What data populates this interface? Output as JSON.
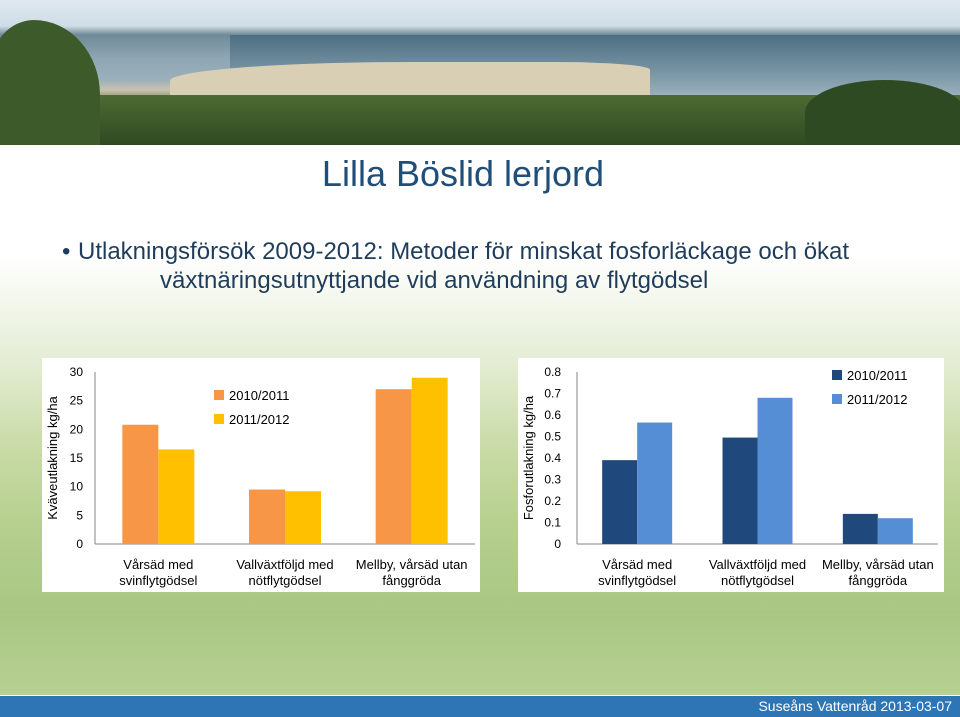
{
  "slide": {
    "title": "Lilla Böslid lerjord",
    "bullet_line1": "Utlakningsförsök 2009-2012: Metoder för minskat fosforläckage och ökat",
    "bullet_line2": "växtnäringsutnyttjande vid användning av flytgödsel",
    "footer": "Suseåns Vattenråd 2013-03-07"
  },
  "colors": {
    "title": "#1f4e79",
    "footer_bar": "#2e75b6"
  },
  "chart_data": [
    {
      "type": "bar",
      "ylabel": "Kväveutlakning kg/ha",
      "ylim": [
        0,
        30
      ],
      "yticks": [
        "0",
        "5",
        "10",
        "15",
        "20",
        "25",
        "30"
      ],
      "categories": [
        [
          "Vårsäd med",
          "svinflytgödsel"
        ],
        [
          "Vallväxtföljd med",
          "nötflytgödsel"
        ],
        [
          "Mellby, vårsäd utan",
          "fånggröda"
        ]
      ],
      "series": [
        {
          "name": "2010/2011",
          "color": "#f79646",
          "values": [
            20.8,
            9.5,
            27.0
          ]
        },
        {
          "name": "2011/2012",
          "color": "#ffc000",
          "values": [
            16.5,
            9.2,
            29.0
          ]
        }
      ],
      "legend": "top-center",
      "grid": false
    },
    {
      "type": "bar",
      "ylabel": "Fosforutlakning kg/ha",
      "ylim": [
        0,
        0.8
      ],
      "yticks": [
        "0",
        "0.1",
        "0.2",
        "0.3",
        "0.4",
        "0.5",
        "0.6",
        "0.7",
        "0.8"
      ],
      "categories": [
        [
          "Vårsäd med",
          "svinflytgödsel"
        ],
        [
          "Vallväxtföljd med",
          "nötflytgödsel"
        ],
        [
          "Mellby, vårsäd utan",
          "fånggröda"
        ]
      ],
      "series": [
        {
          "name": "2010/2011",
          "color": "#1f497d",
          "values": [
            0.39,
            0.495,
            0.14
          ]
        },
        {
          "name": "2011/2012",
          "color": "#558ed5",
          "values": [
            0.565,
            0.68,
            0.12
          ]
        }
      ],
      "legend": "top-right",
      "grid": false
    }
  ]
}
